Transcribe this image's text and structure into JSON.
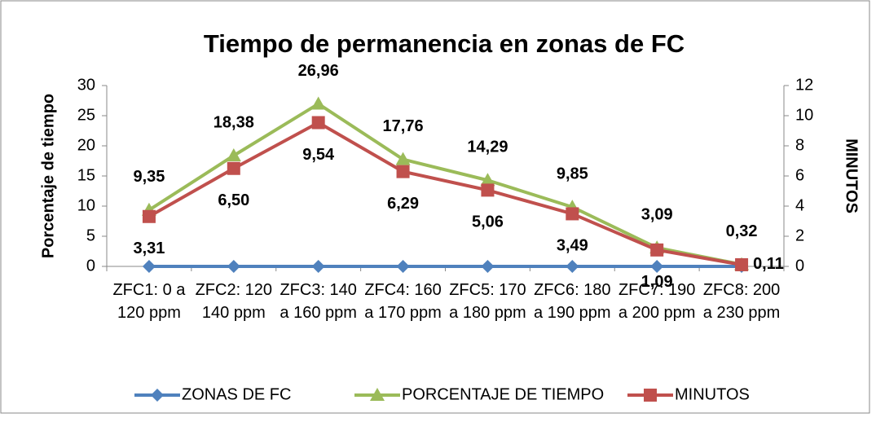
{
  "chart_data": {
    "type": "line",
    "title": "Tiempo de permanencia en zonas de FC",
    "ylabel": "Porcentaje de tiempo",
    "y2label": "MINUTOS",
    "categories": [
      "ZFC1: 0 a 120 ppm",
      "ZFC2: 120 140 ppm",
      "ZFC3: 140 a 160 ppm",
      "ZFC4: 160 a 170 ppm",
      "ZFC5: 170 a 180 ppm",
      "ZFC6: 180 a 190 ppm",
      "ZFC7: 190 a 200 ppm",
      "ZFC8: 200 a 230 ppm"
    ],
    "series": [
      {
        "name": "ZONAS DE FC",
        "color": "#4f81bd",
        "marker": "diamond",
        "values": [
          0,
          0,
          0,
          0,
          0,
          0,
          0,
          0
        ]
      },
      {
        "name": "PORCENTAJE DE TIEMPO",
        "color": "#9bbb59",
        "marker": "triangle",
        "values": [
          9.35,
          18.38,
          26.96,
          17.76,
          14.29,
          9.85,
          3.09,
          0.32
        ],
        "value_labels": [
          "9,35",
          "18,38",
          "26,96",
          "17,76",
          "14,29",
          "9,85",
          "3,09",
          "0,32"
        ]
      },
      {
        "name": "MINUTOS",
        "color": "#c0504d",
        "marker": "square",
        "axis": "y2",
        "values": [
          3.31,
          6.5,
          9.54,
          6.29,
          5.06,
          3.49,
          1.09,
          0.11
        ],
        "value_labels": [
          "3,31",
          "6,50",
          "9,54",
          "6,29",
          "5,06",
          "3,49",
          "1,09",
          "0,11"
        ]
      }
    ],
    "ylim": [
      0,
      30
    ],
    "yticks": [
      0,
      5,
      10,
      15,
      20,
      25,
      30
    ],
    "y2lim": [
      0,
      12
    ],
    "y2ticks": [
      0,
      2,
      4,
      6,
      8,
      10,
      12
    ],
    "grid": false,
    "legend": "bottom"
  }
}
